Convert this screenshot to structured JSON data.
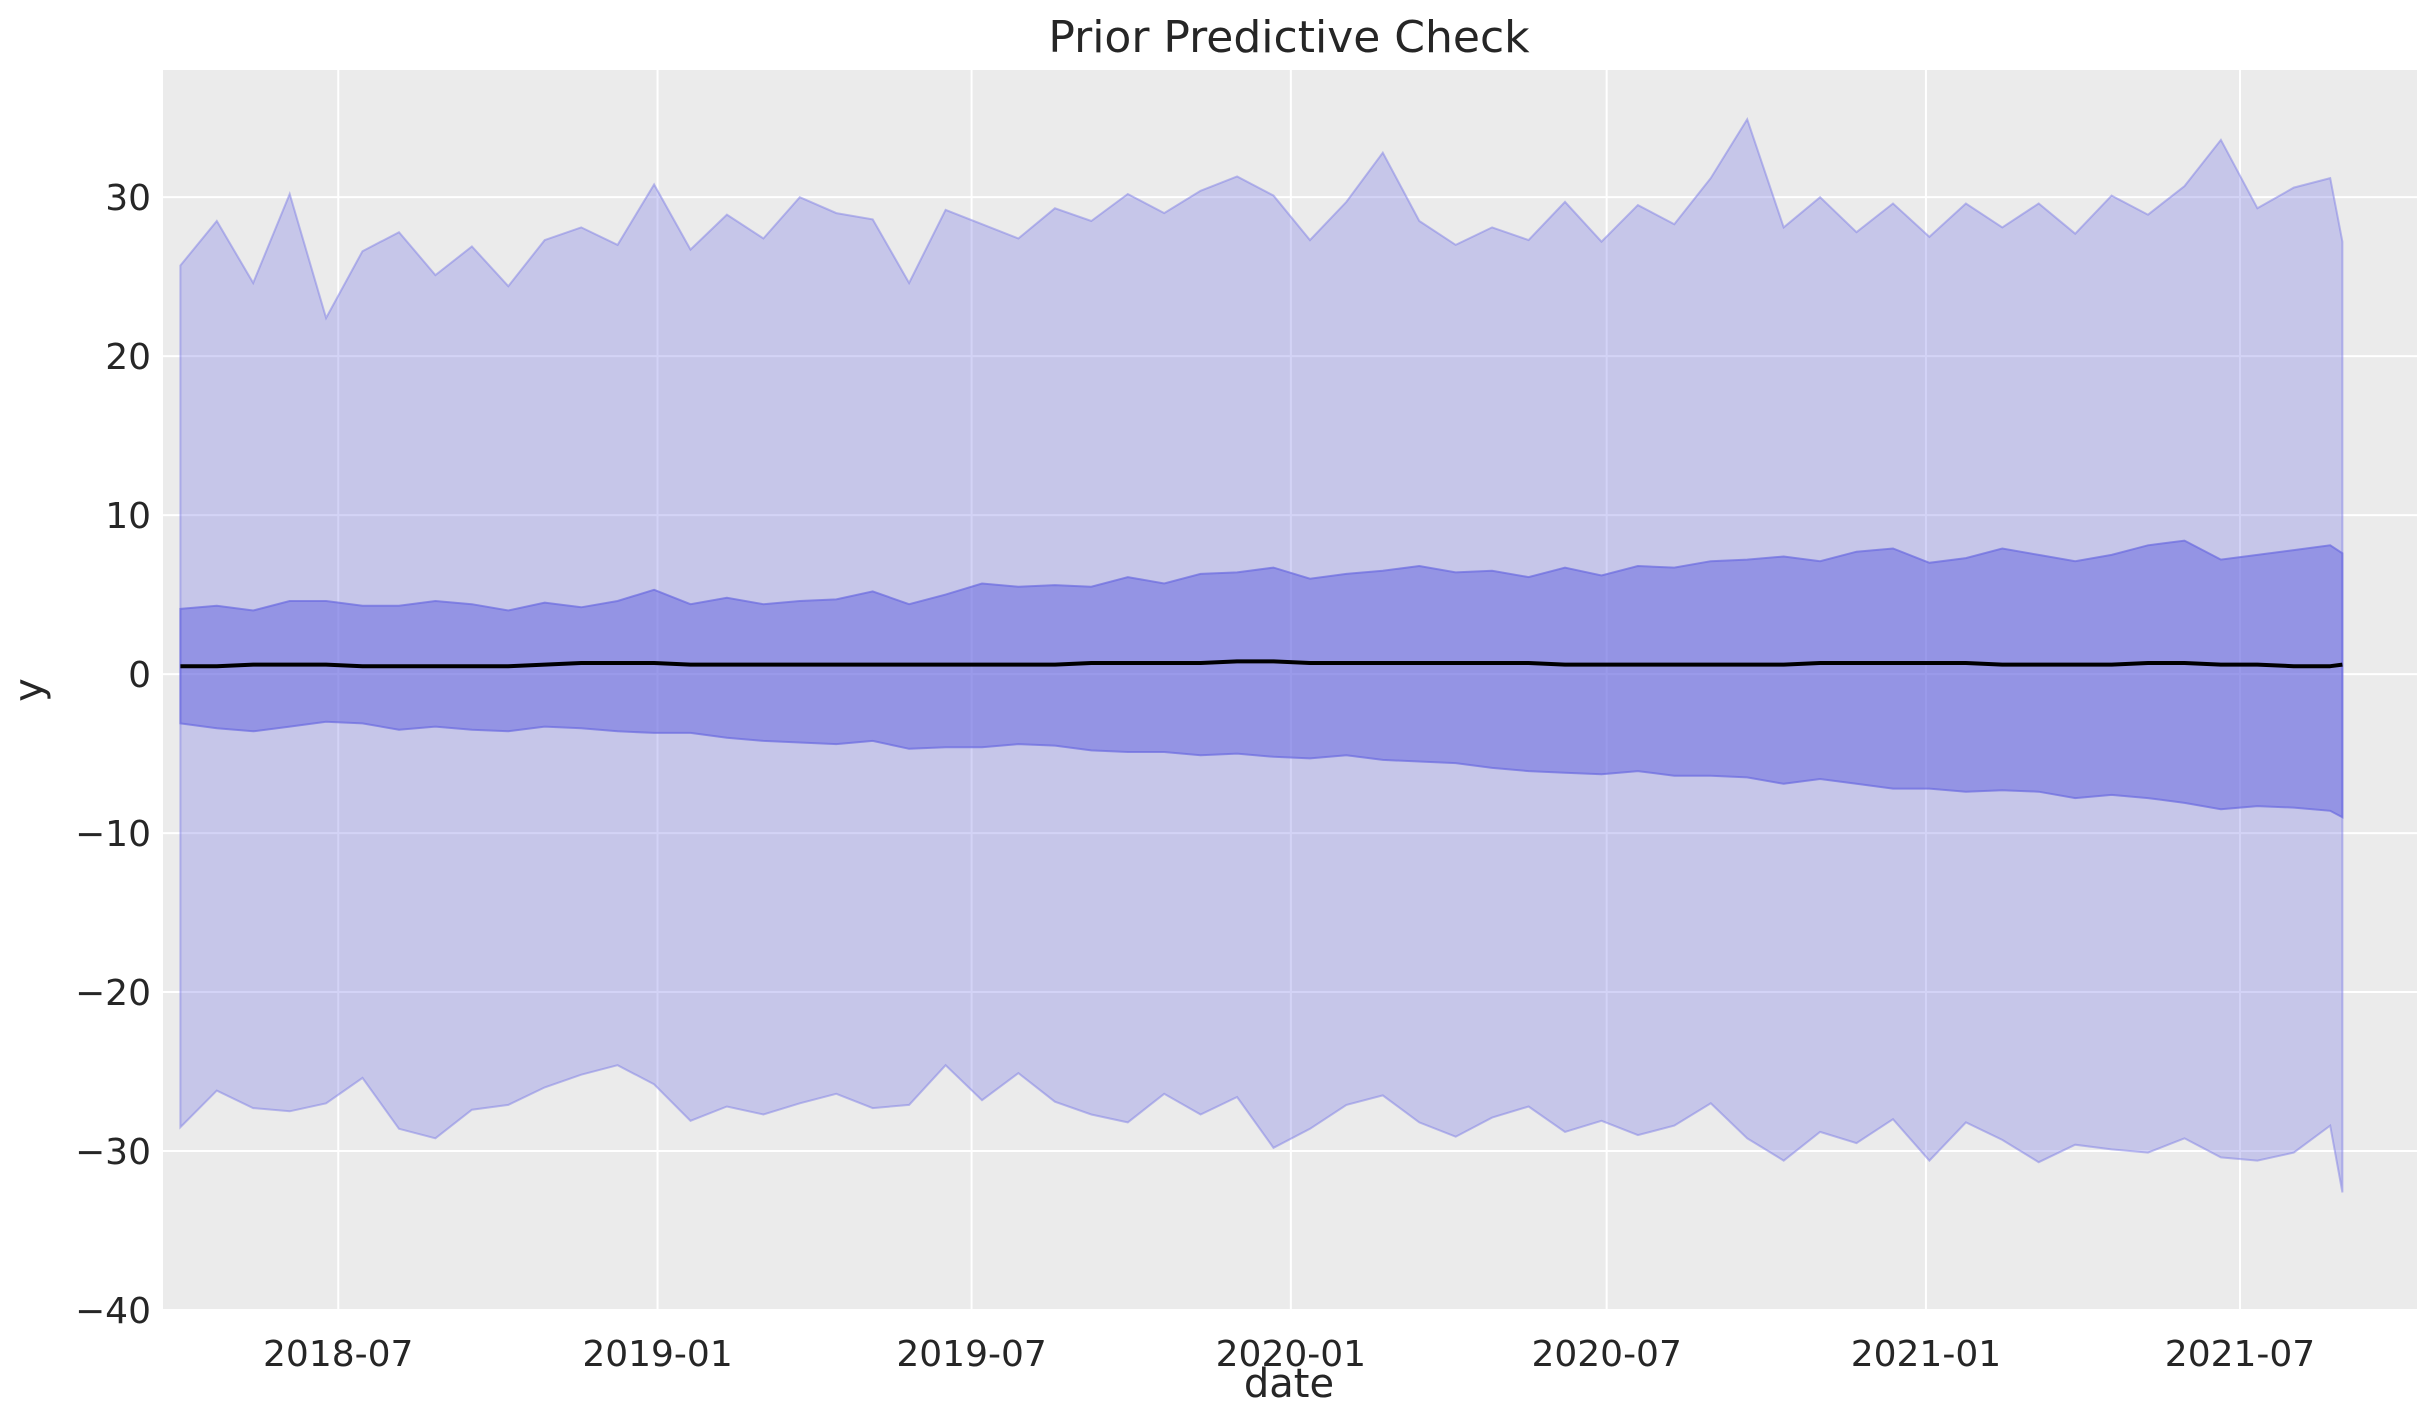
{
  "chart_data": {
    "type": "area",
    "title": "Prior Predictive Check",
    "xlabel": "date",
    "ylabel": "y",
    "ylim": [
      -40,
      38
    ],
    "xlim": [
      "2018-03-22",
      "2021-10-11"
    ],
    "grid": true,
    "background_color": "#ebebeb",
    "x_ticks": [
      "2018-07",
      "2019-01",
      "2019-07",
      "2020-01",
      "2020-07",
      "2021-01",
      "2021-07"
    ],
    "y_ticks": [
      -40,
      -30,
      -20,
      -10,
      0,
      10,
      20,
      30
    ],
    "x": [
      "2018-04-01",
      "2018-04-22",
      "2018-05-13",
      "2018-06-03",
      "2018-06-24",
      "2018-07-15",
      "2018-08-05",
      "2018-08-26",
      "2018-09-16",
      "2018-10-07",
      "2018-10-28",
      "2018-11-18",
      "2018-12-09",
      "2018-12-30",
      "2019-01-20",
      "2019-02-10",
      "2019-03-03",
      "2019-03-24",
      "2019-04-14",
      "2019-05-05",
      "2019-05-26",
      "2019-06-16",
      "2019-07-07",
      "2019-07-28",
      "2019-08-18",
      "2019-09-08",
      "2019-09-29",
      "2019-10-20",
      "2019-11-10",
      "2019-12-01",
      "2019-12-22",
      "2020-01-12",
      "2020-02-02",
      "2020-02-23",
      "2020-03-15",
      "2020-04-05",
      "2020-04-26",
      "2020-05-17",
      "2020-06-07",
      "2020-06-28",
      "2020-07-19",
      "2020-08-09",
      "2020-08-30",
      "2020-09-20",
      "2020-10-11",
      "2020-11-01",
      "2020-11-22",
      "2020-12-13",
      "2021-01-03",
      "2021-01-24",
      "2021-02-14",
      "2021-03-07",
      "2021-03-28",
      "2021-04-18",
      "2021-05-09",
      "2021-05-30",
      "2021-06-20",
      "2021-07-11",
      "2021-08-01",
      "2021-08-22",
      "2021-08-29"
    ],
    "series": [
      {
        "name": "",
        "color": "#8080e6",
        "opacity": 0.35,
        "upper": [
          25.7,
          28.5,
          24.6,
          30.2,
          22.4,
          26.6,
          27.8,
          25.1,
          26.9,
          24.4,
          27.3,
          28.1,
          27.0,
          30.8,
          26.7,
          28.9,
          27.4,
          30.0,
          29.0,
          28.6,
          24.6,
          29.2,
          28.3,
          27.4,
          29.3,
          28.5,
          30.2,
          29.0,
          30.4,
          31.3,
          30.1,
          27.3,
          29.7,
          32.8,
          28.5,
          27.0,
          28.1,
          27.3,
          29.7,
          27.2,
          29.5,
          28.3,
          31.2,
          34.9,
          28.1,
          30.0,
          27.8,
          29.6,
          27.5,
          29.6,
          28.1,
          29.6,
          27.7,
          30.1,
          28.9,
          30.7,
          33.6,
          29.3,
          30.6,
          31.2,
          27.2
        ],
        "lower": [
          -28.5,
          -26.2,
          -27.3,
          -27.5,
          -27.0,
          -25.4,
          -28.6,
          -29.2,
          -27.4,
          -27.1,
          -26.0,
          -25.2,
          -24.6,
          -25.8,
          -28.1,
          -27.2,
          -27.7,
          -27.0,
          -26.4,
          -27.3,
          -27.1,
          -24.6,
          -26.8,
          -25.1,
          -26.9,
          -27.7,
          -28.2,
          -26.4,
          -27.7,
          -26.6,
          -29.8,
          -28.6,
          -27.1,
          -26.5,
          -28.2,
          -29.1,
          -27.9,
          -27.2,
          -28.8,
          -28.1,
          -29.0,
          -28.4,
          -27.0,
          -29.2,
          -30.6,
          -28.8,
          -29.5,
          -28.0,
          -30.6,
          -28.2,
          -29.3,
          -30.7,
          -29.6,
          -29.9,
          -30.1,
          -29.2,
          -30.4,
          -30.6,
          -30.1,
          -28.4,
          -32.6
        ]
      },
      {
        "name": "",
        "color": "#6b6be0",
        "opacity": 0.55,
        "upper": [
          4.1,
          4.3,
          4.0,
          4.6,
          4.6,
          4.3,
          4.3,
          4.6,
          4.4,
          4.0,
          4.5,
          4.2,
          4.6,
          5.3,
          4.4,
          4.8,
          4.4,
          4.6,
          4.7,
          5.2,
          4.4,
          5.0,
          5.7,
          5.5,
          5.6,
          5.5,
          6.1,
          5.7,
          6.3,
          6.4,
          6.7,
          6.0,
          6.3,
          6.5,
          6.8,
          6.4,
          6.5,
          6.1,
          6.7,
          6.2,
          6.8,
          6.7,
          7.1,
          7.2,
          7.4,
          7.1,
          7.7,
          7.9,
          7.0,
          7.3,
          7.9,
          7.5,
          7.1,
          7.5,
          8.1,
          8.4,
          7.2,
          7.5,
          7.8,
          8.1,
          7.6
        ],
        "lower": [
          -3.1,
          -3.4,
          -3.6,
          -3.3,
          -3.0,
          -3.1,
          -3.5,
          -3.3,
          -3.5,
          -3.6,
          -3.3,
          -3.4,
          -3.6,
          -3.7,
          -3.7,
          -4.0,
          -4.2,
          -4.3,
          -4.4,
          -4.2,
          -4.7,
          -4.6,
          -4.6,
          -4.4,
          -4.5,
          -4.8,
          -4.9,
          -4.9,
          -5.1,
          -5.0,
          -5.2,
          -5.3,
          -5.1,
          -5.4,
          -5.5,
          -5.6,
          -5.9,
          -6.1,
          -6.2,
          -6.3,
          -6.1,
          -6.4,
          -6.4,
          -6.5,
          -6.9,
          -6.6,
          -6.9,
          -7.2,
          -7.2,
          -7.4,
          -7.3,
          -7.4,
          -7.8,
          -7.6,
          -7.8,
          -8.1,
          -8.5,
          -8.3,
          -8.4,
          -8.6,
          -9.0
        ]
      },
      {
        "name": "",
        "color": "#000000",
        "opacity": 1,
        "mean": [
          0.5,
          0.5,
          0.6,
          0.6,
          0.6,
          0.5,
          0.5,
          0.5,
          0.5,
          0.5,
          0.6,
          0.7,
          0.7,
          0.7,
          0.6,
          0.6,
          0.6,
          0.6,
          0.6,
          0.6,
          0.6,
          0.6,
          0.6,
          0.6,
          0.6,
          0.7,
          0.7,
          0.7,
          0.7,
          0.8,
          0.8,
          0.7,
          0.7,
          0.7,
          0.7,
          0.7,
          0.7,
          0.7,
          0.6,
          0.6,
          0.6,
          0.6,
          0.6,
          0.6,
          0.6,
          0.7,
          0.7,
          0.7,
          0.7,
          0.7,
          0.6,
          0.6,
          0.6,
          0.6,
          0.7,
          0.7,
          0.6,
          0.6,
          0.5,
          0.5,
          0.6
        ]
      }
    ]
  }
}
